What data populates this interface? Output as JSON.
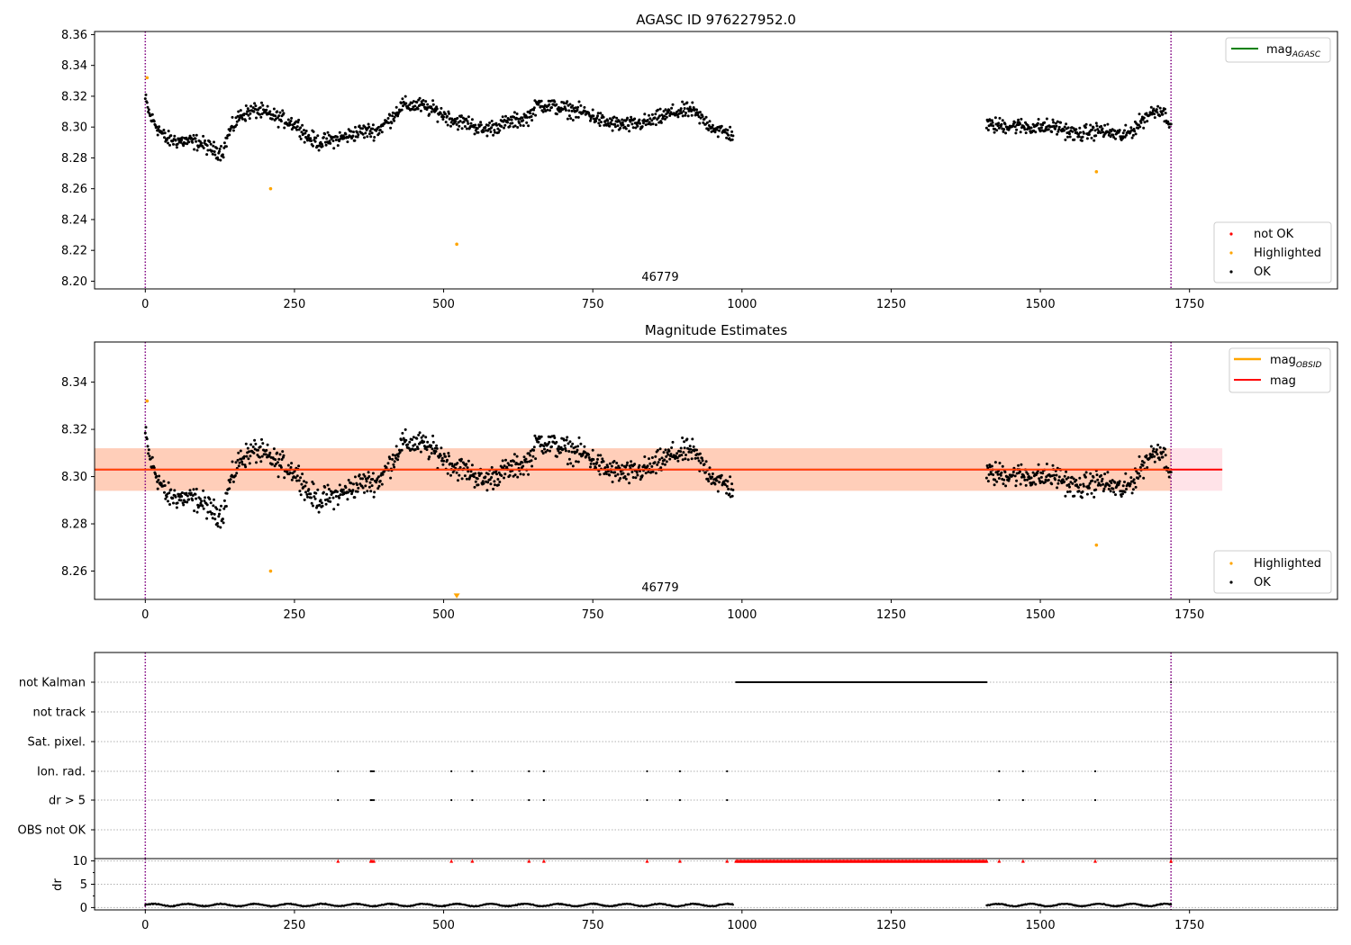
{
  "figure": {
    "title_top": "AGASC ID 976227952.0",
    "title_mid": "Magnitude Estimates"
  },
  "colors": {
    "ok": "#000000",
    "highlighted": "#ffa500",
    "not_ok": "#ff0000",
    "mag_agasc_line": "#008000",
    "mag_obsid_line": "#ffa500",
    "mag_line": "#ff0000",
    "band_fill": "#ffc0cb",
    "band_fill_obsid": "#ffb380",
    "vline": "#800080",
    "grid": "#b0b0b0",
    "dr_marker": "#ff0000"
  },
  "chart_data": [
    {
      "id": "top",
      "type": "scatter",
      "title": "AGASC ID 976227952.0",
      "xlim": [
        -85,
        1998
      ],
      "ylim": [
        8.195,
        8.362
      ],
      "yticks": [
        "8.20",
        "8.22",
        "8.24",
        "8.26",
        "8.28",
        "8.30",
        "8.32",
        "8.34",
        "8.36"
      ],
      "xticks": [
        "0",
        "250",
        "500",
        "750",
        "1000",
        "1250",
        "1500",
        "1750"
      ],
      "annotation": "46779",
      "vlines_x": [
        0,
        1719
      ],
      "legend_lines": [
        {
          "label": "mag",
          "sub": "AGASC",
          "color": "#008000"
        }
      ],
      "legend_points": [
        {
          "label": "not OK",
          "color": "#ff0000"
        },
        {
          "label": "Highlighted",
          "color": "#ffa500"
        },
        {
          "label": "OK",
          "color": "#000000"
        }
      ],
      "ok_segments": [
        {
          "x_start": 0,
          "x_end": 985,
          "levels": [
            [
              0,
              8.318
            ],
            [
              8,
              8.307
            ],
            [
              20,
              8.3
            ],
            [
              35,
              8.292
            ],
            [
              60,
              8.291
            ],
            [
              90,
              8.29
            ],
            [
              115,
              8.285
            ],
            [
              130,
              8.284
            ],
            [
              140,
              8.296
            ],
            [
              160,
              8.308
            ],
            [
              185,
              8.311
            ],
            [
              215,
              8.307
            ],
            [
              245,
              8.303
            ],
            [
              260,
              8.3
            ],
            [
              270,
              8.294
            ],
            [
              290,
              8.29
            ],
            [
              330,
              8.293
            ],
            [
              360,
              8.297
            ],
            [
              390,
              8.298
            ],
            [
              410,
              8.305
            ],
            [
              430,
              8.314
            ],
            [
              460,
              8.314
            ],
            [
              490,
              8.31
            ],
            [
              520,
              8.304
            ],
            [
              545,
              8.302
            ],
            [
              565,
              8.298
            ],
            [
              600,
              8.302
            ],
            [
              640,
              8.306
            ],
            [
              660,
              8.315
            ],
            [
              700,
              8.312
            ],
            [
              740,
              8.309
            ],
            [
              770,
              8.303
            ],
            [
              810,
              8.301
            ],
            [
              850,
              8.304
            ],
            [
              880,
              8.309
            ],
            [
              915,
              8.311
            ],
            [
              940,
              8.303
            ],
            [
              960,
              8.298
            ],
            [
              985,
              8.295
            ]
          ]
        },
        {
          "x_start": 1410,
          "x_end": 1719,
          "levels": [
            [
              1410,
              8.301
            ],
            [
              1450,
              8.301
            ],
            [
              1490,
              8.3
            ],
            [
              1530,
              8.3
            ],
            [
              1560,
              8.295
            ],
            [
              1600,
              8.298
            ],
            [
              1640,
              8.294
            ],
            [
              1660,
              8.3
            ],
            [
              1680,
              8.308
            ],
            [
              1700,
              8.312
            ],
            [
              1719,
              8.303
            ]
          ]
        }
      ],
      "highlighted_points": [
        [
          3,
          8.332
        ],
        [
          210,
          8.26
        ],
        [
          522,
          8.224
        ],
        [
          1594,
          8.271
        ]
      ],
      "band": null,
      "mag_line": null
    },
    {
      "id": "mid",
      "type": "scatter",
      "title": "Magnitude Estimates",
      "xlim": [
        -85,
        1998
      ],
      "ylim": [
        8.248,
        8.357
      ],
      "yticks": [
        "8.26",
        "8.28",
        "8.30",
        "8.32",
        "8.34"
      ],
      "xticks": [
        "0",
        "250",
        "500",
        "750",
        "1000",
        "1250",
        "1500",
        "1750"
      ],
      "annotation": "46779",
      "vlines_x": [
        0,
        1719
      ],
      "legend_lines": [
        {
          "label": "mag",
          "sub": "OBSID",
          "color": "#ffa500"
        },
        {
          "label": "mag",
          "sub": "",
          "color": "#ff0000"
        }
      ],
      "legend_points": [
        {
          "label": "Highlighted",
          "color": "#ffa500"
        },
        {
          "label": "OK",
          "color": "#000000"
        }
      ],
      "mag_line": {
        "value": 8.303,
        "x_start": -85,
        "x_end": 1805
      },
      "band": {
        "low": 8.294,
        "high": 8.312,
        "x_start": -85,
        "x_end": 1805
      },
      "band_obsid": {
        "low": 8.294,
        "high": 8.312,
        "x_start": -85,
        "x_end": 1719
      },
      "highlighted_points": [
        [
          3,
          8.332
        ],
        [
          210,
          8.26
        ],
        [
          1594,
          8.271
        ]
      ],
      "highlighted_arrow": [
        522,
        8.249
      ]
    },
    {
      "id": "flags",
      "type": "scatter",
      "xlim": [
        -85,
        1998
      ],
      "rows": [
        "not Kalman",
        "not track",
        "Sat. pixel.",
        "Ion. rad.",
        "dr > 5",
        "OBS not OK"
      ],
      "not_kalman_range": [
        990,
        1410
      ],
      "ion_rad_x": [
        323,
        378,
        380,
        383,
        513,
        548,
        643,
        668,
        841,
        896,
        975,
        1431,
        1471,
        1592
      ],
      "dr5_x": [
        323,
        378,
        380,
        383,
        513,
        548,
        643,
        668,
        841,
        896,
        975,
        1431,
        1471,
        1592
      ],
      "vlines_x": [
        0,
        1719
      ]
    },
    {
      "id": "dr",
      "type": "scatter",
      "ylabel": "dr",
      "xlim": [
        -85,
        1998
      ],
      "ylim": [
        -0.5,
        10.5
      ],
      "yticks": [
        "0",
        "5",
        "10"
      ],
      "xticks": [
        "0",
        "250",
        "500",
        "750",
        "1000",
        "1250",
        "1500",
        "1750"
      ],
      "dr_clipped_x": [
        323,
        378,
        380,
        383,
        513,
        548,
        643,
        668,
        841,
        896,
        975,
        1431,
        1471,
        1592,
        1719
      ],
      "dr_clipped_range": [
        990,
        1410
      ],
      "dr_ok_segments": [
        [
          0,
          985
        ],
        [
          1410,
          1719
        ]
      ],
      "vlines_x": [
        0,
        1719
      ]
    }
  ]
}
